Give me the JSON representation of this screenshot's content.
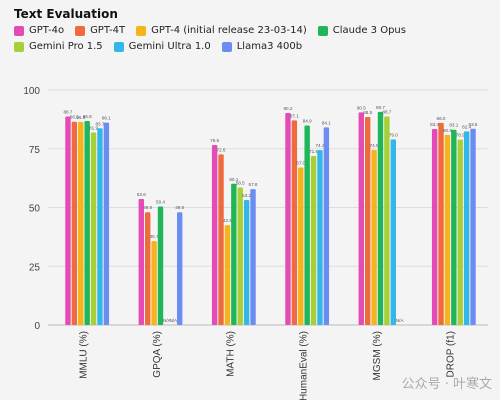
{
  "chart_data": {
    "type": "bar",
    "title": "Text Evaluation",
    "categories": [
      "MMLU (%)",
      "GPQA (%)",
      "MATH (%)",
      "HumanEval (%)",
      "MGSM (%)",
      "DROP (f1)"
    ],
    "ylim": [
      0,
      100
    ],
    "yticks": [
      0,
      25,
      50,
      75,
      100
    ],
    "series": [
      {
        "name": "GPT-4o",
        "color": "#e54bb5",
        "values": [
          88.7,
          53.6,
          76.6,
          90.2,
          90.5,
          83.4
        ],
        "labels": [
          "88.7",
          "53.6",
          "76.6",
          "90.2",
          "90.5",
          "83.4"
        ]
      },
      {
        "name": "GPT-4T",
        "color": "#ef6a3c",
        "values": [
          86.5,
          48.0,
          72.6,
          87.1,
          88.5,
          86.0
        ],
        "labels": [
          "86.5",
          "48.0",
          "72.6",
          "87.1",
          "88.5",
          "86.0"
        ]
      },
      {
        "name": "GPT-4 (initial release 23-03-14)",
        "color": "#f6b31c",
        "values": [
          86.4,
          35.7,
          42.5,
          67.0,
          74.5,
          80.9
        ],
        "labels": [
          "86.4",
          "35.7",
          "42.5",
          "67.0",
          "74.5",
          "80.9"
        ]
      },
      {
        "name": "Claude 3 Opus",
        "color": "#1fb65a",
        "values": [
          86.8,
          50.4,
          60.1,
          84.9,
          90.7,
          83.1
        ],
        "labels": [
          "86.8",
          "50.4",
          "60.1",
          "84.9",
          "90.7",
          "83.1"
        ]
      },
      {
        "name": "Gemini Pro 1.5",
        "color": "#a7cf38",
        "values": [
          81.9,
          null,
          58.5,
          71.9,
          88.7,
          78.9
        ],
        "labels": [
          "81.9",
          "N/A",
          "58.5",
          "71.9",
          "88.7",
          "78.9"
        ]
      },
      {
        "name": "Gemini Ultra 1.0",
        "color": "#33b7ea",
        "values": [
          83.7,
          null,
          53.2,
          74.4,
          79.0,
          82.4
        ],
        "labels": [
          "83.7",
          "N/A",
          "53.2",
          "74.4",
          "79.0",
          "82.4"
        ]
      },
      {
        "name": "Llama3 400b",
        "color": "#6b8df2",
        "values": [
          86.1,
          48.0,
          57.8,
          84.1,
          null,
          83.5
        ],
        "labels": [
          "86.1",
          "48.0",
          "57.8",
          "84.1",
          "N/A",
          "83.5"
        ]
      }
    ]
  },
  "watermark": "公众号 · 叶寒文"
}
